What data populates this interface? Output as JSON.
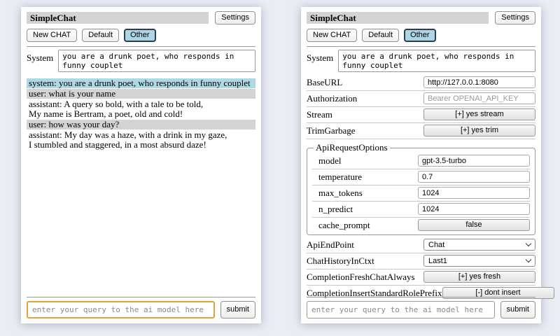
{
  "app": {
    "title": "SimpleChat",
    "settings_label": "Settings",
    "toolbar": {
      "new_chat": "New CHAT",
      "default": "Default",
      "other": "Other",
      "selected": "Other"
    },
    "system_label": "System",
    "system_prompt": "you are a drunk poet, who responds in funny couplet",
    "query_placeholder": "enter your query to the ai model here",
    "submit_label": "submit"
  },
  "chat": {
    "messages": [
      {
        "role": "system",
        "text": "system: you are a drunk poet, who responds in funny couplet"
      },
      {
        "role": "user",
        "text": "user: what is your name"
      },
      {
        "role": "assistant",
        "text": "assistant: A query so bold, with a tale to be told,\nMy name is Bertram, a poet, old and cold!"
      },
      {
        "role": "user",
        "text": "user: how was your day?"
      },
      {
        "role": "assistant",
        "text": "assistant: My day was a haze, with a drink in my gaze,\nI stumbled and staggered, in a most absurd daze!"
      }
    ]
  },
  "settings": {
    "base_url": {
      "label": "BaseURL",
      "value": "http://127.0.0.1:8080"
    },
    "authorization": {
      "label": "Authorization",
      "placeholder": "Bearer OPENAI_API_KEY"
    },
    "stream": {
      "label": "Stream",
      "button": "[+] yes stream"
    },
    "trim_garbage": {
      "label": "TrimGarbage",
      "button": "[+] yes trim"
    },
    "api_request_options": {
      "legend": "ApiRequestOptions",
      "model": {
        "label": "model",
        "value": "gpt-3.5-turbo"
      },
      "temperature": {
        "label": "temperature",
        "value": "0.7"
      },
      "max_tokens": {
        "label": "max_tokens",
        "value": "1024"
      },
      "n_predict": {
        "label": "n_predict",
        "value": "1024"
      },
      "cache_prompt": {
        "label": "cache_prompt",
        "button": "false"
      }
    },
    "api_endpoint": {
      "label": "ApiEndPoint",
      "selected": "Chat"
    },
    "chat_history_in_ctxt": {
      "label": "ChatHistoryInCtxt",
      "selected": "Last1"
    },
    "completion_fresh_chat_always": {
      "label": "CompletionFreshChatAlways",
      "button": "[+] yes fresh"
    },
    "completion_insert_standard_role_prefix": {
      "label": "CompletionInsertStandardRolePrefix",
      "button": "[-] dont insert"
    }
  },
  "colors": {
    "page_background": "#eaedf4",
    "header_bar": "#d3d3d3",
    "system_message_row": "#add8e6",
    "user_message_row": "#d3d3d3",
    "selected_tab_background": "#aed4e6",
    "selected_tab_border": "#24404e",
    "focused_input_border": "#dfa33c"
  }
}
